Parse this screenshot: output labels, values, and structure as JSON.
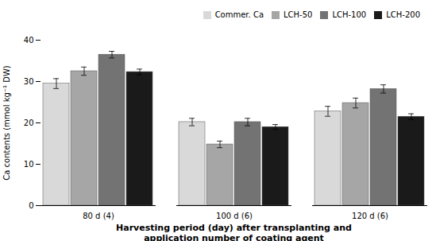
{
  "chart_data": {
    "type": "bar",
    "categories": [
      "80 d (4)",
      "100 d (6)",
      "120 d (6)"
    ],
    "series": [
      {
        "name": "Commer. Ca",
        "color": "#d9d9d9",
        "values": [
          29.5,
          20.2,
          22.8
        ],
        "errors": [
          1.2,
          0.9,
          1.2
        ]
      },
      {
        "name": "LCH-50",
        "color": "#a6a6a6",
        "values": [
          32.5,
          14.8,
          24.8
        ],
        "errors": [
          1.0,
          0.8,
          1.2
        ]
      },
      {
        "name": "LCH-100",
        "color": "#737373",
        "values": [
          36.5,
          20.2,
          28.2
        ],
        "errors": [
          0.8,
          0.9,
          1.0
        ]
      },
      {
        "name": "LCH-200",
        "color": "#1a1a1a",
        "values": [
          32.3,
          19.0,
          21.5
        ],
        "errors": [
          0.7,
          0.6,
          0.7
        ]
      }
    ],
    "ylabel": "Ca contents (mmol kg⁻¹ DW)",
    "xlabel": "Harvesting period (day) after transplanting and\napplication number of coating agent",
    "ylim": [
      0,
      40
    ],
    "yticks": [
      0,
      10,
      20,
      30,
      40
    ],
    "legend": "upper right",
    "grid": false
  }
}
